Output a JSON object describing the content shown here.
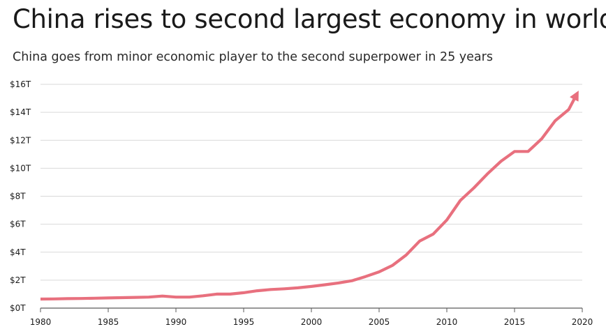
{
  "chart_data": {
    "type": "line",
    "title": "China rises to second largest economy in world",
    "subtitle": "China goes from minor economic player to the second superpower in 25 years",
    "xlabel": "",
    "ylabel": "",
    "xlim": [
      1980,
      2020
    ],
    "ylim": [
      0,
      16
    ],
    "x_ticks": [
      1980,
      1985,
      1990,
      1995,
      2000,
      2005,
      2010,
      2015,
      2020
    ],
    "x_tick_labels": [
      "1980",
      "1985",
      "1990",
      "1995",
      "2000",
      "2005",
      "2010",
      "2015",
      "2020"
    ],
    "y_ticks": [
      0,
      2,
      4,
      6,
      8,
      10,
      12,
      14,
      16
    ],
    "y_tick_labels": [
      "$0T",
      "$2T",
      "$4T",
      "$6T",
      "$8T",
      "$10T",
      "$12T",
      "$14T",
      "$16T"
    ],
    "grid": "horizontal",
    "line_color": "#e8707e",
    "end_marker": "arrow",
    "series": [
      {
        "x": [
          1980,
          1981,
          1982,
          1983,
          1984,
          1985,
          1986,
          1987,
          1988,
          1989,
          1990,
          1991,
          1992,
          1993,
          1994,
          1995,
          1996,
          1997,
          1998,
          1999,
          2000,
          2001,
          2002,
          2003,
          2004,
          2005,
          2006,
          2007,
          2008,
          2009,
          2010,
          2011,
          2012,
          2013,
          2014,
          2015,
          2016,
          2017,
          2018,
          2019,
          2019.6
        ],
        "values": [
          0.65,
          0.66,
          0.68,
          0.69,
          0.71,
          0.73,
          0.75,
          0.77,
          0.79,
          0.86,
          0.79,
          0.79,
          0.88,
          1.0,
          1.0,
          1.1,
          1.24,
          1.33,
          1.38,
          1.45,
          1.55,
          1.67,
          1.8,
          1.96,
          2.26,
          2.59,
          3.06,
          3.8,
          4.8,
          5.3,
          6.3,
          7.7,
          8.6,
          9.6,
          10.5,
          11.2,
          11.2,
          12.1,
          13.4,
          14.2,
          15.3
        ]
      }
    ]
  }
}
